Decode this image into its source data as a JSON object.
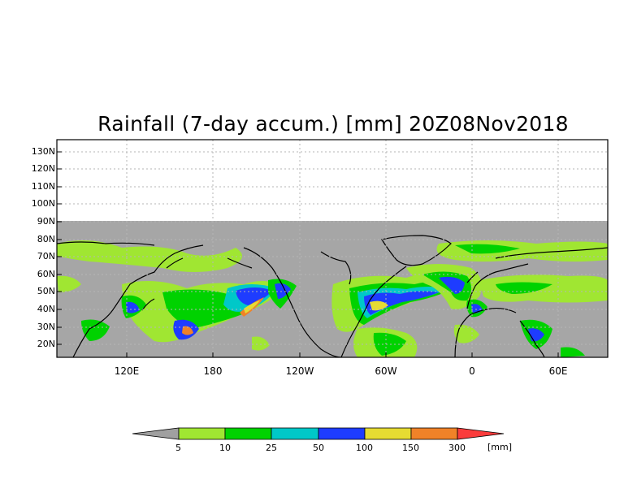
{
  "title": "Rainfall (7-day accum.) [mm] 20Z08Nov2018",
  "y_axis_labels": [
    "130N",
    "120N",
    "110N",
    "100N",
    "90N",
    "80N",
    "70N",
    "60N",
    "50N",
    "40N",
    "30N",
    "20N"
  ],
  "x_axis_labels": [
    "120E",
    "180",
    "120W",
    "60W",
    "0",
    "60E"
  ],
  "colorbar": {
    "levels": [
      "5",
      "10",
      "25",
      "50",
      "100",
      "150",
      "300"
    ],
    "units": "[mm]",
    "colors": {
      "below": "#a0a0a0",
      "c5_10": "#a0e632",
      "c10_25": "#00d200",
      "c25_50": "#00c8c8",
      "c50_100": "#1e3cff",
      "c100_150": "#e6dc32",
      "c150_300": "#f08228",
      "above": "#fa3c3c"
    }
  },
  "colors": {
    "no_data": "#ffffff",
    "land_ocean_gray": "#a6a6a6",
    "coastline": "#000000"
  }
}
